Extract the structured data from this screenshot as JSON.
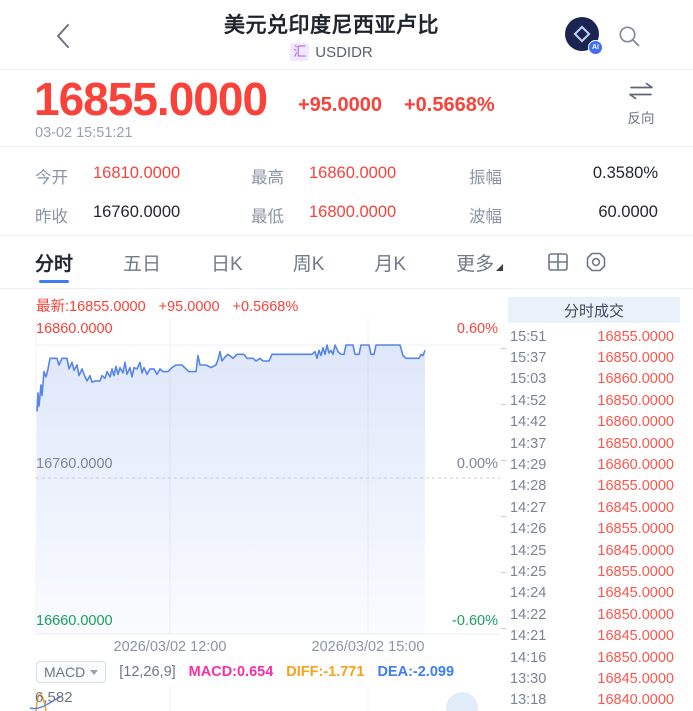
{
  "header": {
    "title": "美元兑印度尼西亚卢比",
    "symbol_tag": "汇",
    "symbol": "USDIDR",
    "ai_badge": "AI"
  },
  "quote": {
    "price": "16855.0000",
    "change": "+95.0000",
    "change_pct": "+0.5668%",
    "timestamp": "03-02 15:51:21",
    "reverse_label": "反向"
  },
  "stats": {
    "items": [
      {
        "label": "今开",
        "value": "16810.0000",
        "tone": "up"
      },
      {
        "label": "最高",
        "value": "16860.0000",
        "tone": "up"
      },
      {
        "label": "振幅",
        "value": "0.3580%",
        "tone": "neutral"
      },
      {
        "label": "昨收",
        "value": "16760.0000",
        "tone": "neutral"
      },
      {
        "label": "最低",
        "value": "16800.0000",
        "tone": "up"
      },
      {
        "label": "波幅",
        "value": "60.0000",
        "tone": "neutral"
      }
    ]
  },
  "tabs": {
    "items": [
      "分时",
      "五日",
      "日K",
      "周K",
      "月K",
      "更多"
    ],
    "active": "分时"
  },
  "chart_data": {
    "type": "area",
    "latest": "最新:16855.0000",
    "change": "+95.0000",
    "change_pct": "+0.5668%",
    "prev_close": 16760,
    "ylim": [
      16660,
      16860
    ],
    "y_ticks": [
      {
        "price": "16860.0000",
        "pct": "0.60%",
        "tone": "up"
      },
      {
        "price": "16760.0000",
        "pct": "0.00%",
        "tone": "flat"
      },
      {
        "price": "16660.0000",
        "pct": "-0.60%",
        "tone": "down"
      }
    ],
    "x_ticks": [
      "2026/03/02 12:00",
      "2026/03/02 15:00"
    ],
    "series": [
      {
        "name": "price",
        "points": [
          [
            37,
            16810
          ],
          [
            38,
            16824
          ],
          [
            39,
            16814
          ],
          [
            41,
            16830
          ],
          [
            42,
            16822
          ],
          [
            44,
            16840
          ],
          [
            46,
            16836
          ],
          [
            48,
            16842
          ],
          [
            50,
            16850
          ],
          [
            57,
            16850
          ],
          [
            59,
            16845
          ],
          [
            62,
            16850
          ],
          [
            67,
            16850
          ],
          [
            69,
            16842
          ],
          [
            72,
            16847
          ],
          [
            74,
            16841
          ],
          [
            77,
            16845
          ],
          [
            79,
            16837
          ],
          [
            82,
            16842
          ],
          [
            84,
            16838
          ],
          [
            87,
            16833
          ],
          [
            90,
            16837
          ],
          [
            92,
            16832
          ],
          [
            95,
            16833
          ],
          [
            100,
            16833
          ],
          [
            102,
            16837
          ],
          [
            105,
            16835
          ],
          [
            107,
            16840
          ],
          [
            110,
            16836
          ],
          [
            112,
            16842
          ],
          [
            114,
            16837
          ],
          [
            116,
            16844
          ],
          [
            118,
            16838
          ],
          [
            120,
            16843
          ],
          [
            123,
            16839
          ],
          [
            125,
            16847
          ],
          [
            127,
            16838
          ],
          [
            130,
            16843
          ],
          [
            132,
            16836
          ],
          [
            134,
            16843
          ],
          [
            137,
            16842
          ],
          [
            140,
            16847
          ],
          [
            142,
            16839
          ],
          [
            144,
            16843
          ],
          [
            147,
            16838
          ],
          [
            150,
            16842
          ],
          [
            154,
            16842
          ],
          [
            157,
            16838
          ],
          [
            160,
            16842
          ],
          [
            163,
            16840
          ],
          [
            168,
            16840
          ],
          [
            172,
            16843
          ],
          [
            176,
            16845
          ],
          [
            182,
            16845
          ],
          [
            186,
            16842
          ],
          [
            189,
            16840
          ],
          [
            196,
            16840
          ],
          [
            198,
            16852
          ],
          [
            200,
            16845
          ],
          [
            206,
            16845
          ],
          [
            211,
            16843
          ],
          [
            216,
            16845
          ],
          [
            218,
            16849
          ],
          [
            220,
            16855
          ],
          [
            222,
            16848
          ],
          [
            225,
            16851
          ],
          [
            228,
            16853
          ],
          [
            233,
            16850
          ],
          [
            237,
            16853
          ],
          [
            244,
            16853
          ],
          [
            247,
            16850
          ],
          [
            253,
            16850
          ],
          [
            256,
            16848
          ],
          [
            260,
            16850
          ],
          [
            263,
            16848
          ],
          [
            269,
            16848
          ],
          [
            272,
            16853
          ],
          [
            312,
            16853
          ],
          [
            315,
            16855
          ],
          [
            317,
            16850
          ],
          [
            319,
            16856
          ],
          [
            321,
            16852
          ],
          [
            323,
            16858
          ],
          [
            325,
            16853
          ],
          [
            327,
            16860
          ],
          [
            329,
            16854
          ],
          [
            331,
            16856
          ],
          [
            333,
            16853
          ],
          [
            335,
            16860
          ],
          [
            338,
            16855
          ],
          [
            341,
            16853
          ],
          [
            344,
            16853
          ],
          [
            346,
            16860
          ],
          [
            353,
            16860
          ],
          [
            355,
            16853
          ],
          [
            359,
            16853
          ],
          [
            361,
            16860
          ],
          [
            369,
            16860
          ],
          [
            371,
            16853
          ],
          [
            374,
            16853
          ],
          [
            376,
            16860
          ],
          [
            400,
            16860
          ],
          [
            403,
            16852
          ],
          [
            406,
            16850
          ],
          [
            419,
            16850
          ],
          [
            421,
            16853
          ],
          [
            423,
            16852
          ],
          [
            425,
            16856
          ]
        ]
      }
    ]
  },
  "macd": {
    "selector": "MACD",
    "params": "[12,26,9]",
    "macd_label": "MACD:0.654",
    "diff_label": "DIFF:-1.771",
    "dea_label": "DEA:-2.099",
    "corner_value": "6,582"
  },
  "trade_list": {
    "title": "分时成交",
    "rows": [
      [
        "15:51",
        "16855.0000"
      ],
      [
        "15:37",
        "16850.0000"
      ],
      [
        "15:03",
        "16860.0000"
      ],
      [
        "14:52",
        "16850.0000"
      ],
      [
        "14:42",
        "16860.0000"
      ],
      [
        "14:37",
        "16850.0000"
      ],
      [
        "14:29",
        "16860.0000"
      ],
      [
        "14:28",
        "16855.0000"
      ],
      [
        "14:27",
        "16845.0000"
      ],
      [
        "14:26",
        "16855.0000"
      ],
      [
        "14:25",
        "16845.0000"
      ],
      [
        "14:25",
        "16855.0000"
      ],
      [
        "14:24",
        "16845.0000"
      ],
      [
        "14:22",
        "16850.0000"
      ],
      [
        "14:21",
        "16845.0000"
      ],
      [
        "14:16",
        "16850.0000"
      ],
      [
        "13:30",
        "16845.0000"
      ],
      [
        "13:18",
        "16840.0000"
      ]
    ]
  },
  "colors": {
    "up_red": "#f9423a",
    "down_green": "#16a05d",
    "line_blue": "#5585e7",
    "tab_active_blue": "#3f7df6",
    "macd_magenta": "#f72fa7",
    "diff_orange": "#f9a01d",
    "dea_blue": "#3d7df5"
  }
}
